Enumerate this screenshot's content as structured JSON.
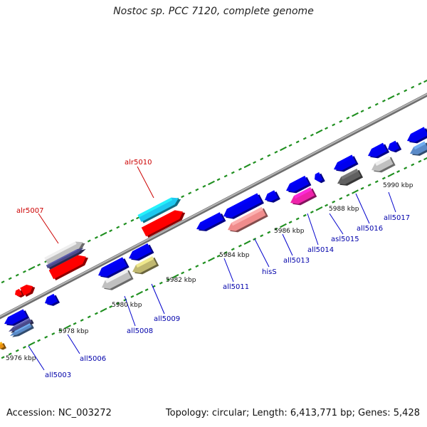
{
  "title": "Nostoc sp. PCC 7120, complete genome",
  "footer": {
    "accession": "Accession: NC_003272",
    "summary": "Topology: circular; Length: 6,413,771 bp; Genes: 5,428"
  },
  "colors": {
    "axis": "#8c8c8c",
    "tick": "#1f8f1f",
    "forward_label": "#cc0000",
    "reverse_label": "#0000aa",
    "leader": "#0000cc"
  },
  "ruler_labels": [
    "5976 kbp",
    "5978 kbp",
    "5980 kbp",
    "5982 kbp",
    "5984 kbp",
    "5986 kbp",
    "5988 kbp",
    "5990 kbp"
  ],
  "forward_gene_labels": [
    "alr5007",
    "alr5010"
  ],
  "reverse_gene_labels": [
    "all5003",
    "all5006",
    "all5008",
    "all5009",
    "all5011",
    "hisS",
    "all5013",
    "all5014",
    "asl5015",
    "all5016",
    "all5017"
  ],
  "gene_colors": [
    "#0000ee",
    "#ff0000",
    "#1ec8f0",
    "#f08c8c",
    "#ee22aa",
    "#c0c0c0",
    "#606060",
    "#4a4a8a",
    "#5a8ac8",
    "#c0b870",
    "#e89010"
  ]
}
